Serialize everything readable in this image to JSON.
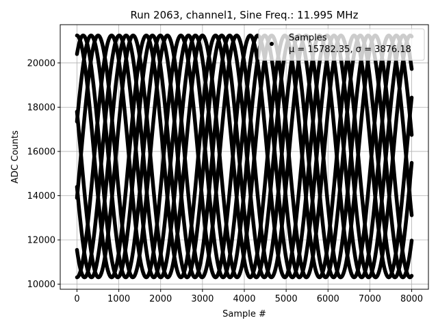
{
  "chart_data": {
    "type": "scatter",
    "title": "Run 2063, channel1, Sine Freq.: 11.995 MHz",
    "xlabel": "Sample #",
    "ylabel": "ADC Counts",
    "xlim": [
      -400,
      8400
    ],
    "ylim": [
      9770,
      21730
    ],
    "x_ticks": [
      0,
      1000,
      2000,
      3000,
      4000,
      5000,
      6000,
      7000,
      8000
    ],
    "y_ticks": [
      10000,
      12000,
      14000,
      16000,
      18000,
      20000
    ],
    "grid": true,
    "legend_placement": "top-right",
    "marker_color": "#000000",
    "series": [
      {
        "name": "Samples",
        "stats_label": "μ = 15782.35, σ = 3876.18",
        "mean": 15782.35,
        "sigma": 3876.18,
        "sample_range": [
          0,
          8000
        ],
        "waveform": "sine",
        "min": 10310,
        "max": 21240,
        "sine_period_samples": 1656,
        "phase_count": 8,
        "phase_start_values": [
          21240,
          20400,
          17800,
          17350,
          14400,
          13900,
          11550,
          10310
        ]
      }
    ]
  }
}
